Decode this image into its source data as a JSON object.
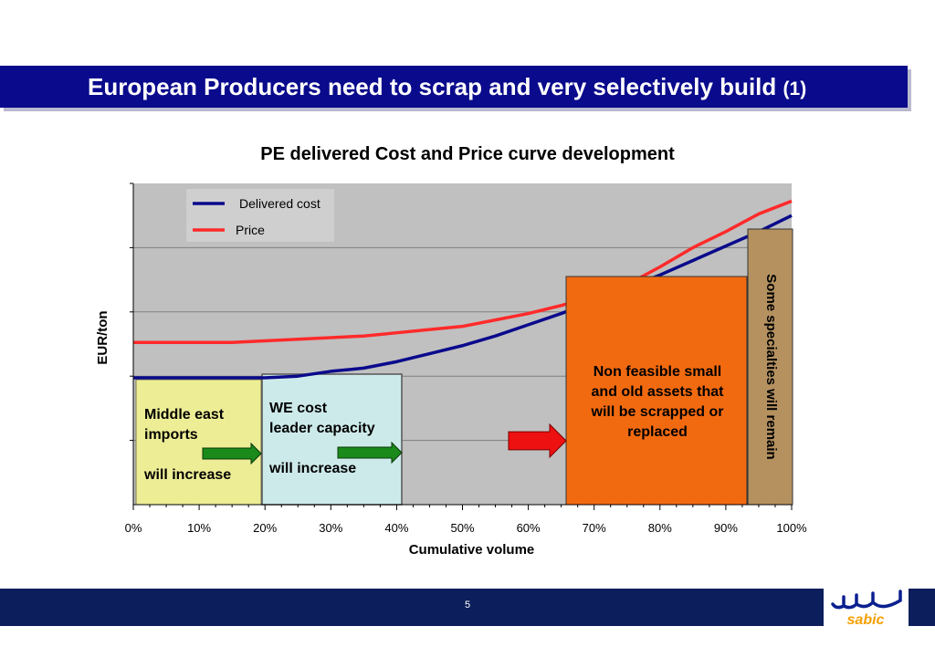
{
  "header": {
    "title": "European Producers need to scrap and very selectively build",
    "title_suffix": "(1)",
    "background": "#0a0a8c"
  },
  "footer": {
    "page_number": "5",
    "logo_text": "sabic",
    "background": "#0c1e5c"
  },
  "chart_data": {
    "type": "line",
    "title": "PE delivered Cost and Price curve development",
    "xlabel": "Cumulative volume",
    "ylabel": "EUR/ton",
    "x_ticks": [
      "0%",
      "10%",
      "20%",
      "30%",
      "40%",
      "50%",
      "60%",
      "70%",
      "80%",
      "90%",
      "100%"
    ],
    "xlim": [
      0,
      100
    ],
    "ylim": [
      0,
      100
    ],
    "grid": true,
    "legend": "top-left",
    "series": [
      {
        "name": "Delivered cost",
        "color": "#0a0a8c",
        "x": [
          0,
          10,
          20,
          25,
          30,
          35,
          40,
          45,
          50,
          55,
          60,
          65,
          70,
          75,
          80,
          85,
          90,
          95,
          100
        ],
        "y": [
          39.5,
          39.5,
          39.5,
          40,
          41.5,
          42.5,
          44.5,
          47,
          49.5,
          52.5,
          56,
          59.5,
          63.5,
          67.5,
          71.5,
          76,
          80.5,
          85,
          90
        ]
      },
      {
        "name": "Price",
        "color": "#ff2a2a",
        "x": [
          0,
          10,
          15,
          20,
          25,
          30,
          35,
          40,
          45,
          50,
          55,
          60,
          65,
          70,
          75,
          80,
          85,
          90,
          95,
          100
        ],
        "y": [
          50.5,
          50.5,
          50.5,
          51,
          51.5,
          52,
          52.5,
          53.5,
          54.5,
          55.5,
          57.5,
          59.5,
          62,
          65,
          68.5,
          74,
          80,
          85,
          90.5,
          94.5
        ]
      }
    ],
    "annotations": {
      "middle_east": {
        "line1": "Middle east",
        "line2": "imports",
        "line3": "will increase",
        "fill": "#eded96"
      },
      "we_cost": {
        "line1": "WE cost",
        "line2": "leader capacity",
        "line3": "will increase",
        "fill": "#cdeaea"
      },
      "non_feasible": {
        "line1": "Non feasible small",
        "line2": "and old assets that",
        "line3": "will be scrapped or",
        "line4": "replaced",
        "fill": "#f26a10"
      },
      "specialties": {
        "text": "Some specialties will remain",
        "fill": "#b4915f"
      }
    }
  }
}
